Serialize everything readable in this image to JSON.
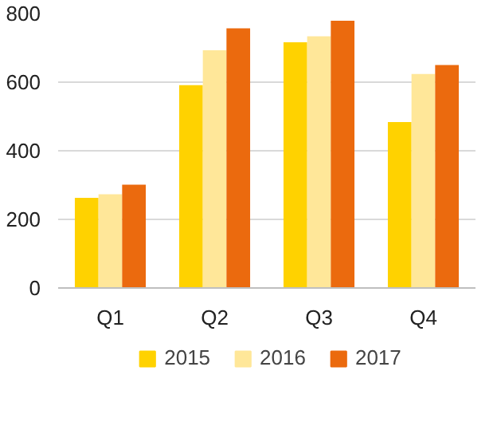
{
  "chart_data": {
    "type": "bar",
    "categories": [
      "Q1",
      "Q2",
      "Q3",
      "Q4"
    ],
    "series": [
      {
        "name": "2015",
        "color": "#ffd200",
        "values": [
          263,
          591,
          716,
          484
        ]
      },
      {
        "name": "2016",
        "color": "#ffe799",
        "values": [
          273,
          693,
          734,
          624
        ]
      },
      {
        "name": "2017",
        "color": "#eb6a0e",
        "values": [
          301,
          757,
          779,
          650
        ]
      }
    ],
    "ylim": [
      0,
      800
    ],
    "yticks": [
      0,
      200,
      400,
      600,
      800
    ],
    "grid": "y",
    "legend": "bottom"
  }
}
